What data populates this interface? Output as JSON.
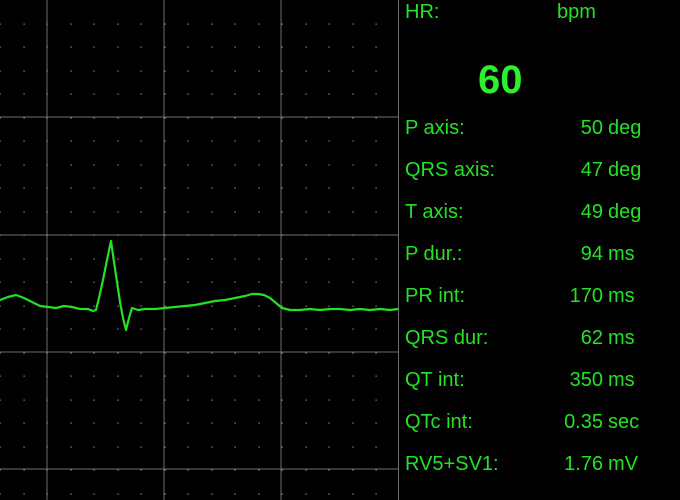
{
  "colors": {
    "background": "#000000",
    "trace": "#25e125",
    "grid": "#6e6e6e",
    "grid_dots": "#9a9a9a",
    "text": "#25e125"
  },
  "heart_rate": {
    "label": "HR:",
    "unit": "bpm",
    "value": "60"
  },
  "measurements": [
    {
      "label": "P axis:",
      "value": "50",
      "unit": "deg"
    },
    {
      "label": "QRS axis:",
      "value": "47",
      "unit": "deg"
    },
    {
      "label": "T axis:",
      "value": "49",
      "unit": "deg"
    },
    {
      "label": "P dur.:",
      "value": "94",
      "unit": "ms"
    },
    {
      "label": "PR int:",
      "value": "170",
      "unit": "ms"
    },
    {
      "label": "QRS dur:",
      "value": "62",
      "unit": "ms"
    },
    {
      "label": "QT int:",
      "value": "350",
      "unit": "ms"
    },
    {
      "label": "QTc int:",
      "value": "0.35",
      "unit": "sec"
    },
    {
      "label": "RV5+SV1:",
      "value": "1.76",
      "unit": "mV"
    }
  ]
}
